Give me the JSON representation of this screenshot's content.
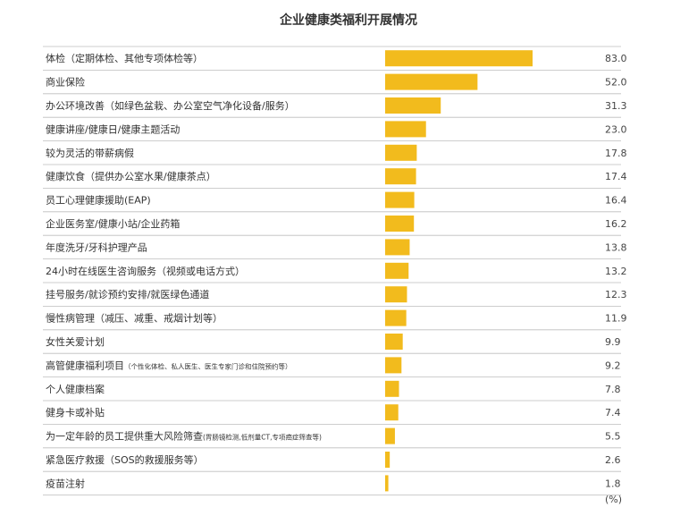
{
  "chart_data": {
    "type": "bar",
    "orientation": "horizontal",
    "title": "企业健康类福利开展情况",
    "unit": "(%)",
    "xlim": [
      0,
      100
    ],
    "bar_color": "#F2BB1D",
    "categories": [
      {
        "label": "体检（定期体检、其他专项体检等）",
        "note": ""
      },
      {
        "label": "商业保险",
        "note": ""
      },
      {
        "label": "办公环境改善（如绿色盆栽、办公室空气净化设备/服务）",
        "note": ""
      },
      {
        "label": "健康讲座/健康日/健康主题活动",
        "note": ""
      },
      {
        "label": "较为灵活的带薪病假",
        "note": ""
      },
      {
        "label": "健康饮食（提供办公室水果/健康茶点）",
        "note": ""
      },
      {
        "label": "员工心理健康援助(EAP)",
        "note": ""
      },
      {
        "label": "企业医务室/健康小站/企业药箱",
        "note": ""
      },
      {
        "label": "年度洗牙/牙科护理产品",
        "note": ""
      },
      {
        "label": "24小时在线医生咨询服务（视频或电话方式）",
        "note": ""
      },
      {
        "label": "挂号服务/就诊预约安排/就医绿色通道",
        "note": ""
      },
      {
        "label": "慢性病管理（减压、减重、戒烟计划等）",
        "note": ""
      },
      {
        "label": "女性关爱计划",
        "note": ""
      },
      {
        "label": "高管健康福利项目",
        "note": "（个性化体检、私人医生、医生专家门诊和住院预约等）"
      },
      {
        "label": "个人健康档案",
        "note": ""
      },
      {
        "label": "健身卡或补贴",
        "note": ""
      },
      {
        "label": "为一定年龄的员工提供重大风险筛查",
        "note": "(胃肠镜检测,低剂量CT,专项癌症筛查等)"
      },
      {
        "label": "紧急医疗救援（SOS的救援服务等）",
        "note": ""
      },
      {
        "label": "疫苗注射",
        "note": ""
      }
    ],
    "values": [
      83.0,
      52.0,
      31.3,
      23.0,
      17.8,
      17.4,
      16.4,
      16.2,
      13.8,
      13.2,
      12.3,
      11.9,
      9.9,
      9.2,
      7.8,
      7.4,
      5.5,
      2.6,
      1.8
    ],
    "value_labels": [
      "83.0",
      "52.0",
      "31.3",
      "23.0",
      "17.8",
      "17.4",
      "16.4",
      "16.2",
      "13.8",
      "13.2",
      "12.3",
      "11.9",
      "9.9",
      "9.2",
      "7.8",
      "7.4",
      "5.5",
      "2.6",
      "1.8"
    ]
  }
}
